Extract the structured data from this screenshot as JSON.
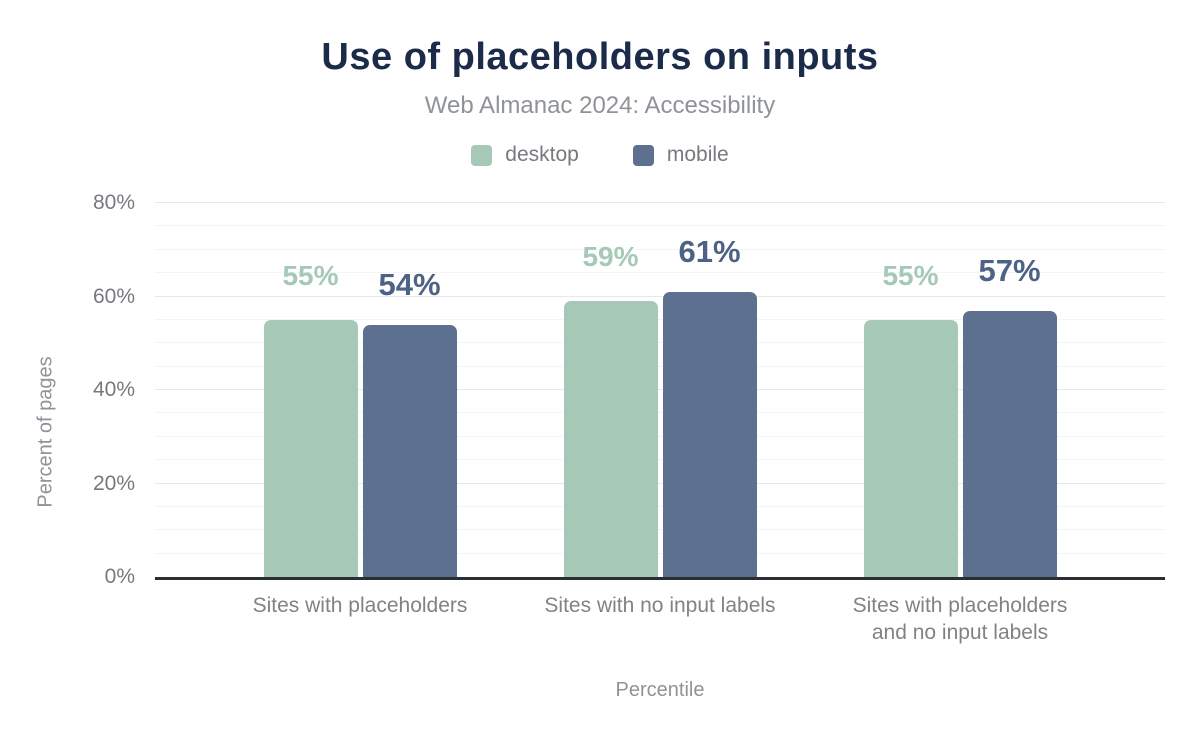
{
  "chart_data": {
    "type": "bar",
    "title": "Use of placeholders on inputs",
    "subtitle": "Web Almanac 2024: Accessibility",
    "categories": [
      "Sites with placeholders",
      "Sites with no input labels",
      "Sites with placeholders\nand no input labels"
    ],
    "series": [
      {
        "name": "desktop",
        "values": [
          55,
          59,
          55
        ],
        "color": "#a6c9b7",
        "label_color": "#a6c9b7"
      },
      {
        "name": "mobile",
        "values": [
          54,
          61,
          57
        ],
        "color": "#5e7090",
        "label_color": "#4d6285"
      }
    ],
    "value_label_suffix": "%",
    "xlabel": "Percentile",
    "ylabel": "Percent of pages",
    "ylim": [
      0,
      80
    ],
    "yticks": [
      0,
      20,
      40,
      60,
      80
    ],
    "ytick_labels": [
      "0%",
      "20%",
      "40%",
      "60%",
      "80%"
    ],
    "minor_grid_step": 5,
    "major_grid_step": 20,
    "grid": true,
    "legend_position": "top",
    "colors": {
      "title": "#1c2b4a",
      "subtitle": "#8f9398",
      "axis_text": "#77797e",
      "axis_line": "#2b2e33",
      "grid_major": "#e7e8ea",
      "grid_minor": "#f4f4f6",
      "background": "#ffffff"
    }
  }
}
